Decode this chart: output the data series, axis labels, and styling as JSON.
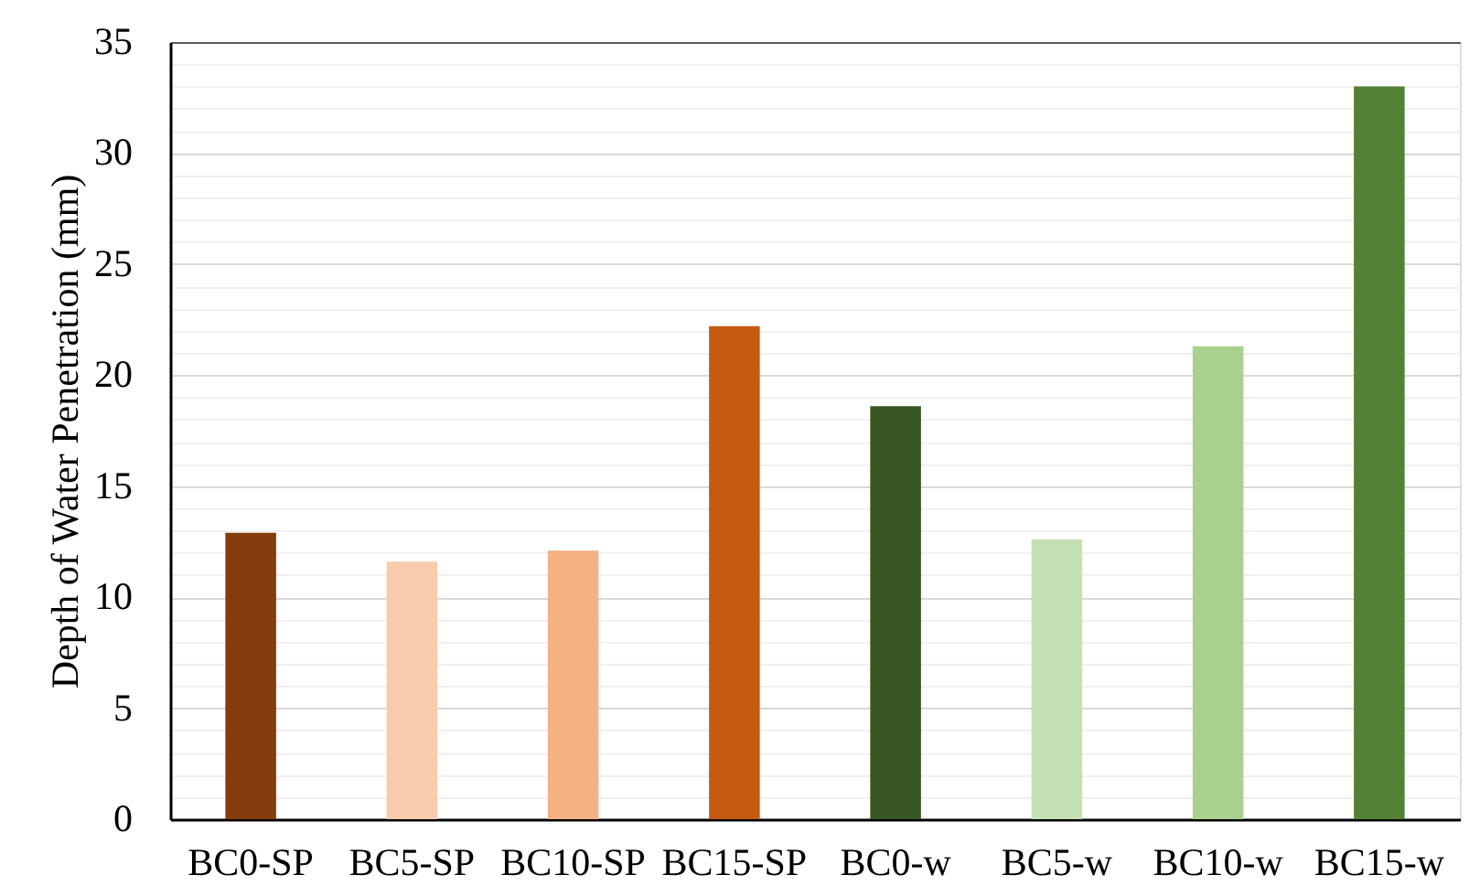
{
  "chart_data": {
    "type": "bar",
    "ylabel": "Depth of Water Penetration (mm)",
    "categories": [
      "BC0-SP",
      "BC5-SP",
      "BC10-SP",
      "BC15-SP",
      "BC0-w",
      "BC5-w",
      "BC10-w",
      "BC15-w"
    ],
    "values": [
      12.9,
      11.6,
      12.1,
      22.2,
      18.6,
      12.6,
      21.3,
      33.0
    ],
    "colors": [
      "#843c0c",
      "#f8cbad",
      "#f4b183",
      "#c55a11",
      "#385723",
      "#c5e0b4",
      "#a9d18e",
      "#548235"
    ],
    "ylim": [
      0,
      35
    ],
    "yticks": [
      0,
      {
        "value": 1,
        "label": null
      },
      {
        "value": 2,
        "label": null
      },
      {
        "value": 3,
        "label": null
      },
      {
        "value": 4,
        "label": null
      },
      5,
      {
        "value": 6,
        "label": null
      },
      {
        "value": 7,
        "label": null
      },
      {
        "value": 8,
        "label": null
      },
      {
        "value": 9,
        "label": null
      },
      10,
      {
        "value": 11,
        "label": null
      },
      {
        "value": 12,
        "label": null
      },
      {
        "value": 13,
        "label": null
      },
      {
        "value": 14,
        "label": null
      },
      15,
      {
        "value": 16,
        "label": null
      },
      {
        "value": 17,
        "label": null
      },
      {
        "value": 18,
        "label": null
      },
      {
        "value": 19,
        "label": null
      },
      20,
      {
        "value": 21,
        "label": null
      },
      {
        "value": 22,
        "label": null
      },
      {
        "value": 23,
        "label": null
      },
      {
        "value": 24,
        "label": null
      },
      25,
      {
        "value": 26,
        "label": null
      },
      {
        "value": 27,
        "label": null
      },
      {
        "value": 28,
        "label": null
      },
      {
        "value": 29,
        "label": null
      },
      30,
      {
        "value": 31,
        "label": null
      },
      {
        "value": 32,
        "label": null
      },
      {
        "value": 33,
        "label": null
      },
      {
        "value": 34,
        "label": null
      },
      35
    ],
    "grid": "y"
  }
}
